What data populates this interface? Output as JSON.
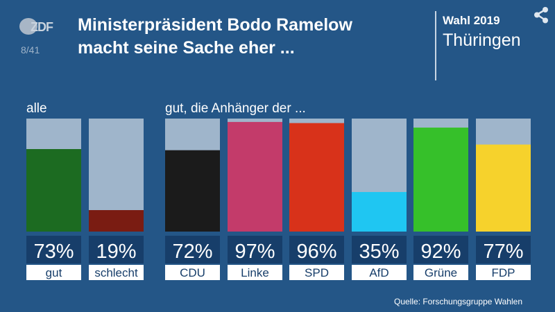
{
  "header": {
    "logo_text": "ZDF",
    "page_counter": "8/41",
    "title_line1": "Ministerpräsident Bodo Ramelow",
    "title_line2": "macht seine Sache eher ...",
    "election_label": "Wahl 2019",
    "region": "Thüringen"
  },
  "colors": {
    "background": "#245687",
    "bar_track": "#9fb5cb",
    "label_box": "#173e6a",
    "label_strip": "#ffffff"
  },
  "chart_data": {
    "type": "bar",
    "group_labels": [
      "alle",
      "gut, die Anhänger der ..."
    ],
    "categories": [
      "gut",
      "schlecht",
      "CDU",
      "Linke",
      "SPD",
      "AfD",
      "Grüne",
      "FDP"
    ],
    "values": [
      73,
      19,
      72,
      97,
      96,
      35,
      92,
      77
    ],
    "value_labels": [
      "73%",
      "19%",
      "72%",
      "97%",
      "96%",
      "35%",
      "92%",
      "77%"
    ],
    "colors": [
      "#1c6b21",
      "#7a1c12",
      "#1b1b1b",
      "#c33b6a",
      "#d8321a",
      "#1fc6f2",
      "#36c02a",
      "#f6d22c"
    ],
    "ylim": [
      0,
      100
    ]
  },
  "footer": {
    "source": "Quelle: Forschungsgruppe Wahlen"
  }
}
